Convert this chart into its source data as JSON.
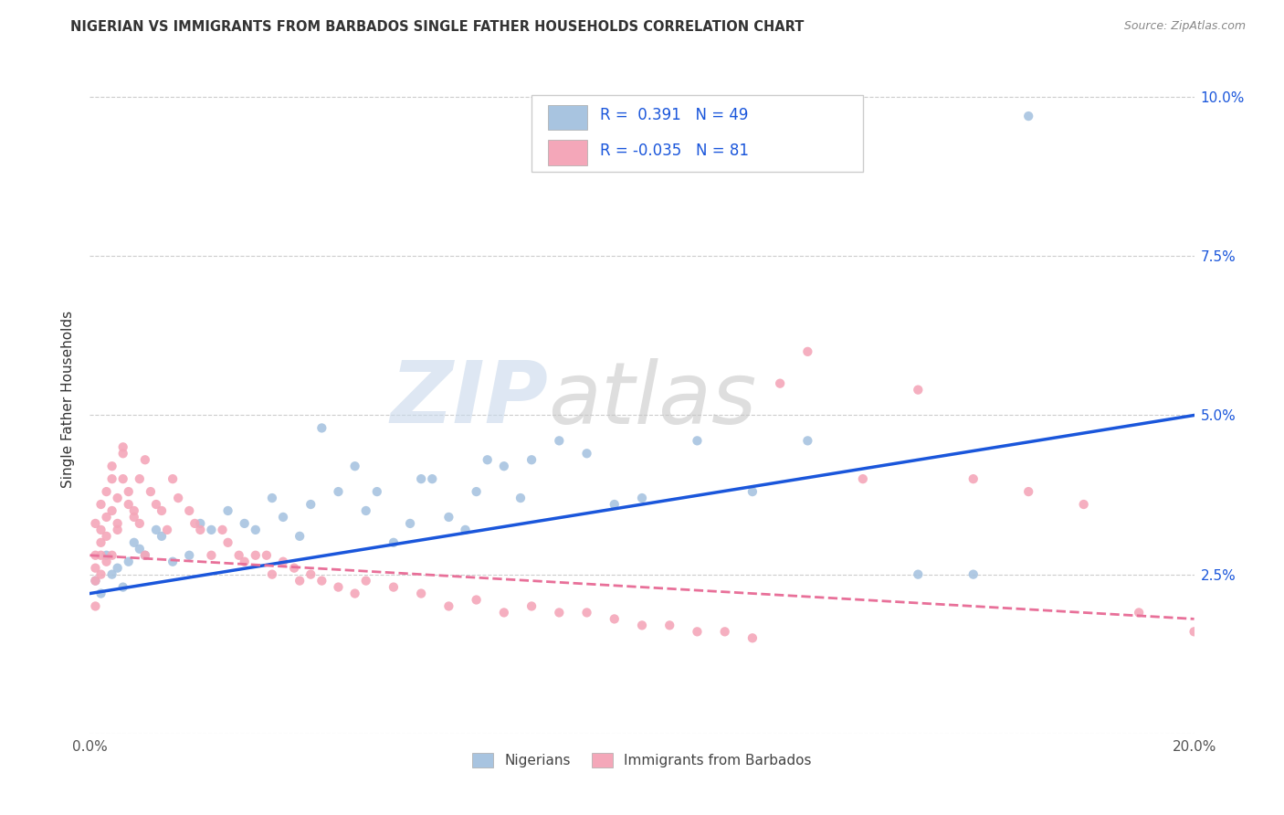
{
  "title": "NIGERIAN VS IMMIGRANTS FROM BARBADOS SINGLE FATHER HOUSEHOLDS CORRELATION CHART",
  "source": "Source: ZipAtlas.com",
  "ylabel": "Single Father Households",
  "xlim": [
    0.0,
    0.2
  ],
  "ylim": [
    0.0,
    0.105
  ],
  "xticks": [
    0.0,
    0.05,
    0.1,
    0.15,
    0.2
  ],
  "xtick_labels": [
    "0.0%",
    "",
    "",
    "",
    "20.0%"
  ],
  "yticks": [
    0.0,
    0.025,
    0.05,
    0.075,
    0.1
  ],
  "ytick_labels": [
    "",
    "2.5%",
    "5.0%",
    "7.5%",
    "10.0%"
  ],
  "blue_R": 0.391,
  "blue_N": 49,
  "pink_R": -0.035,
  "pink_N": 81,
  "blue_color": "#a8c4e0",
  "pink_color": "#f4a7b9",
  "line_blue": "#1a56db",
  "line_pink": "#e87099",
  "watermark_zip": "ZIP",
  "watermark_atlas": "atlas",
  "legend_labels": [
    "Nigerians",
    "Immigrants from Barbados"
  ],
  "blue_line_start_y": 0.022,
  "blue_line_end_y": 0.05,
  "pink_line_start_y": 0.028,
  "pink_line_end_y": 0.018,
  "blue_scatter_x": [
    0.001,
    0.002,
    0.003,
    0.004,
    0.005,
    0.006,
    0.007,
    0.008,
    0.009,
    0.01,
    0.012,
    0.013,
    0.015,
    0.018,
    0.02,
    0.022,
    0.025,
    0.028,
    0.03,
    0.033,
    0.035,
    0.038,
    0.04,
    0.042,
    0.045,
    0.048,
    0.05,
    0.052,
    0.055,
    0.058,
    0.06,
    0.062,
    0.065,
    0.068,
    0.07,
    0.072,
    0.075,
    0.078,
    0.08,
    0.085,
    0.09,
    0.095,
    0.1,
    0.11,
    0.12,
    0.13,
    0.15,
    0.16,
    0.17
  ],
  "blue_scatter_y": [
    0.024,
    0.022,
    0.028,
    0.025,
    0.026,
    0.023,
    0.027,
    0.03,
    0.029,
    0.028,
    0.032,
    0.031,
    0.027,
    0.028,
    0.033,
    0.032,
    0.035,
    0.033,
    0.032,
    0.037,
    0.034,
    0.031,
    0.036,
    0.048,
    0.038,
    0.042,
    0.035,
    0.038,
    0.03,
    0.033,
    0.04,
    0.04,
    0.034,
    0.032,
    0.038,
    0.043,
    0.042,
    0.037,
    0.043,
    0.046,
    0.044,
    0.036,
    0.037,
    0.046,
    0.038,
    0.046,
    0.025,
    0.025,
    0.097
  ],
  "pink_scatter_x": [
    0.001,
    0.001,
    0.001,
    0.001,
    0.001,
    0.002,
    0.002,
    0.002,
    0.002,
    0.002,
    0.003,
    0.003,
    0.003,
    0.003,
    0.004,
    0.004,
    0.004,
    0.004,
    0.005,
    0.005,
    0.005,
    0.006,
    0.006,
    0.006,
    0.007,
    0.007,
    0.008,
    0.008,
    0.009,
    0.009,
    0.01,
    0.01,
    0.011,
    0.012,
    0.013,
    0.014,
    0.015,
    0.016,
    0.018,
    0.019,
    0.02,
    0.022,
    0.024,
    0.025,
    0.027,
    0.028,
    0.03,
    0.032,
    0.033,
    0.035,
    0.037,
    0.038,
    0.04,
    0.042,
    0.045,
    0.048,
    0.05,
    0.055,
    0.06,
    0.065,
    0.07,
    0.075,
    0.08,
    0.085,
    0.09,
    0.095,
    0.1,
    0.105,
    0.11,
    0.115,
    0.12,
    0.125,
    0.13,
    0.14,
    0.15,
    0.16,
    0.17,
    0.18,
    0.19,
    0.2,
    0.201
  ],
  "pink_scatter_y": [
    0.028,
    0.033,
    0.026,
    0.024,
    0.02,
    0.03,
    0.028,
    0.025,
    0.032,
    0.036,
    0.034,
    0.027,
    0.031,
    0.038,
    0.035,
    0.028,
    0.04,
    0.042,
    0.033,
    0.037,
    0.032,
    0.04,
    0.044,
    0.045,
    0.036,
    0.038,
    0.034,
    0.035,
    0.033,
    0.04,
    0.028,
    0.043,
    0.038,
    0.036,
    0.035,
    0.032,
    0.04,
    0.037,
    0.035,
    0.033,
    0.032,
    0.028,
    0.032,
    0.03,
    0.028,
    0.027,
    0.028,
    0.028,
    0.025,
    0.027,
    0.026,
    0.024,
    0.025,
    0.024,
    0.023,
    0.022,
    0.024,
    0.023,
    0.022,
    0.02,
    0.021,
    0.019,
    0.02,
    0.019,
    0.019,
    0.018,
    0.017,
    0.017,
    0.016,
    0.016,
    0.015,
    0.055,
    0.06,
    0.04,
    0.054,
    0.04,
    0.038,
    0.036,
    0.019,
    0.016,
    0.015
  ]
}
